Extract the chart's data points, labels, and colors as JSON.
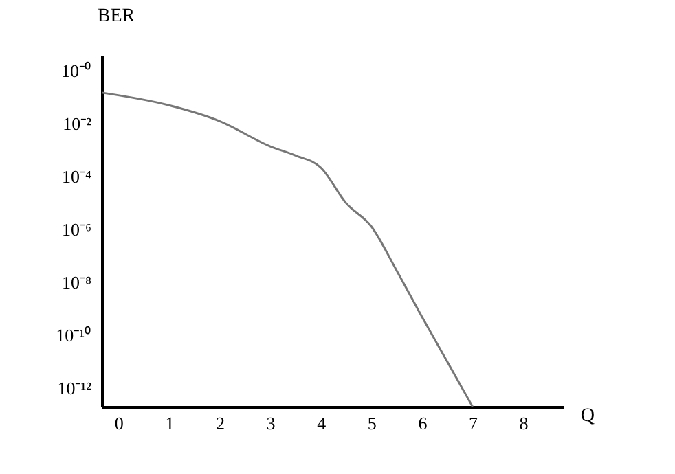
{
  "chart_data": {
    "type": "line",
    "xlabel": "Q",
    "ylabel": "BER",
    "x": [
      -0.33,
      1,
      2,
      3,
      3.5,
      4,
      4.5,
      5,
      5.5,
      6,
      6.5,
      7
    ],
    "series": [
      {
        "color": "#777777",
        "values": [
          0.15,
          0.05,
          0.0126,
          0.0014,
          0.00063,
          0.00022,
          1e-05,
          1.3e-06,
          2.8e-08,
          5e-10,
          1e-11,
          2e-13
        ]
      }
    ],
    "log": "y",
    "grid": false,
    "marker": "none",
    "line_style": "solid",
    "xlim": [
      -0.33,
      8.8
    ],
    "xticks": [
      0,
      1,
      2,
      3,
      4,
      5,
      6,
      7,
      8
    ],
    "ylim": [
      2e-13,
      4
    ],
    "yticks": [
      {
        "value": 1,
        "label": "10⁻⁰"
      },
      {
        "value": 0.01,
        "label": "10⁻²"
      },
      {
        "value": 0.0001,
        "label": "10⁻⁴"
      },
      {
        "value": 1e-06,
        "label": "10⁻⁶"
      },
      {
        "value": 1e-08,
        "label": "10⁻⁸"
      },
      {
        "value": 1e-10,
        "label": "10⁻¹⁰"
      },
      {
        "value": 1e-12,
        "label": "10⁻¹²"
      }
    ]
  }
}
